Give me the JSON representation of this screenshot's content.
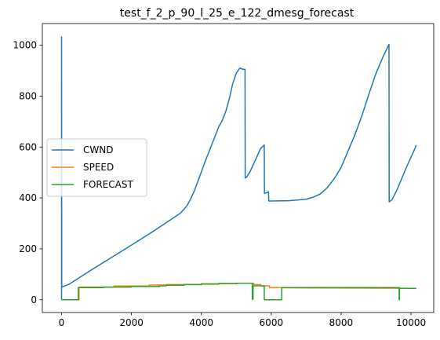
{
  "chart_data": {
    "type": "line",
    "title": "test_f_2_p_90_l_25_e_122_dmesg_forecast",
    "xlabel": "",
    "ylabel": "",
    "xlim": [
      -550,
      10650
    ],
    "ylim": [
      -50,
      1085
    ],
    "xticks": [
      0,
      2000,
      4000,
      6000,
      8000,
      10000
    ],
    "yticks": [
      0,
      200,
      400,
      600,
      800,
      1000
    ],
    "grid": false,
    "legend_position": "center-left",
    "series": [
      {
        "name": "CWND",
        "color": "#1f77b4",
        "x": [
          0,
          0,
          5,
          200,
          600,
          1000,
          1500,
          2000,
          2500,
          3000,
          3400,
          3500,
          3600,
          3700,
          3800,
          3900,
          4000,
          4100,
          4200,
          4300,
          4400,
          4500,
          4600,
          4700,
          4800,
          4900,
          5000,
          5100,
          5200,
          5250,
          5255,
          5300,
          5400,
          5500,
          5600,
          5700,
          5800,
          5805,
          5900,
          5920,
          5930,
          6000,
          6500,
          7000,
          7200,
          7400,
          7600,
          7800,
          8000,
          8200,
          8400,
          8600,
          8800,
          9000,
          9200,
          9370,
          9375,
          9450,
          9500,
          9600,
          9700,
          9800,
          9900,
          10000,
          10100,
          10150
        ],
        "y": [
          0,
          1033,
          50,
          60,
          95,
          130,
          172,
          215,
          258,
          303,
          340,
          355,
          372,
          398,
          428,
          465,
          502,
          540,
          575,
          610,
          645,
          680,
          705,
          740,
          790,
          850,
          890,
          910,
          905,
          905,
          478,
          483,
          505,
          535,
          565,
          595,
          608,
          418,
          422,
          425,
          388,
          388,
          389,
          395,
          403,
          415,
          440,
          475,
          520,
          585,
          650,
          725,
          810,
          890,
          955,
          1003,
          385,
          392,
          405,
          432,
          465,
          498,
          530,
          560,
          590,
          608
        ]
      },
      {
        "name": "SPEED",
        "color": "#ff7f0e",
        "x": [
          0,
          500,
          500,
          1500,
          1500,
          2500,
          2500,
          3000,
          3000,
          4000,
          4000,
          5000,
          5000,
          5500,
          5500,
          5700,
          5700,
          5950,
          5950,
          6300,
          6300,
          10150
        ],
        "y": [
          0,
          0,
          50,
          50,
          54,
          54,
          58,
          58,
          60,
          60,
          63,
          63,
          65,
          65,
          60,
          60,
          55,
          55,
          48,
          48,
          47,
          45
        ]
      },
      {
        "name": "FORECAST",
        "color": "#2ca02c",
        "x": [
          0,
          480,
          480,
          1200,
          1200,
          2000,
          2000,
          2800,
          2800,
          3000,
          3000,
          3500,
          3500,
          4000,
          4000,
          4500,
          4500,
          5000,
          5000,
          5460,
          5460,
          5480,
          5480,
          5800,
          5800,
          5810,
          5810,
          6300,
          6300,
          9660,
          9660,
          9670,
          9670,
          10150
        ],
        "y": [
          0,
          0,
          48,
          48,
          50,
          50,
          52,
          52,
          55,
          55,
          57,
          57,
          60,
          60,
          62,
          62,
          64,
          64,
          65,
          65,
          2,
          2,
          55,
          55,
          2,
          2,
          0,
          0,
          48,
          48,
          0,
          0,
          45,
          45
        ]
      }
    ]
  }
}
